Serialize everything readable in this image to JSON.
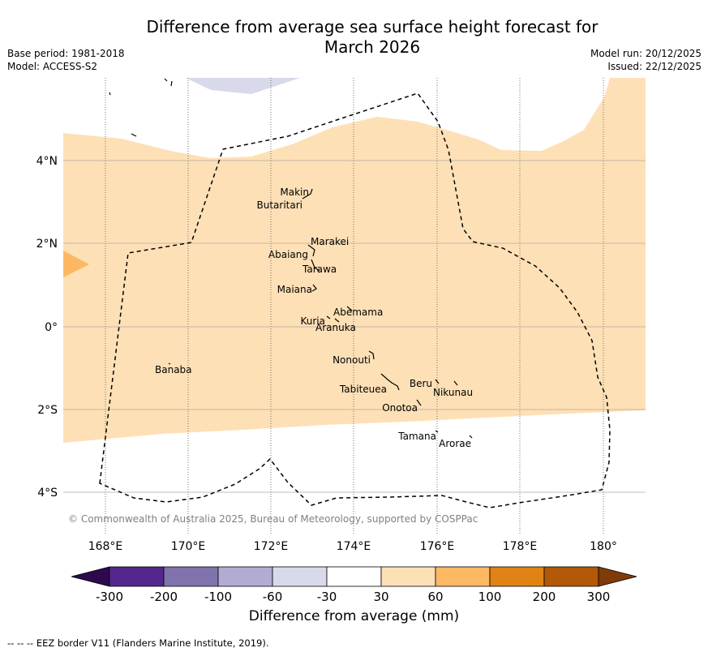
{
  "title": {
    "line1": "Difference from average sea surface height forecast for",
    "line2": "March 2026"
  },
  "meta": {
    "base_period": "Base period: 1981-2018",
    "model": "Model: ACCESS-S2",
    "model_run": "Model run: 20/12/2025",
    "issued": "Issued: 22/12/2025"
  },
  "map": {
    "lon_range": [
      167,
      181
    ],
    "lat_range": [
      -5,
      6
    ],
    "lon_ticks": [
      "168°E",
      "170°E",
      "172°E",
      "174°E",
      "176°E",
      "178°E",
      "180°"
    ],
    "lat_ticks": [
      "4°N",
      "2°N",
      "0°",
      "2°S",
      "4°S"
    ],
    "copyright": "© Commonwealth of Australia 2025, Bureau of Meteorology, supported by COSPPac",
    "islands": [
      {
        "name": "Makin"
      },
      {
        "name": "Butaritari"
      },
      {
        "name": "Marakei"
      },
      {
        "name": "Abaiang"
      },
      {
        "name": "Tarawa"
      },
      {
        "name": "Maiana"
      },
      {
        "name": "Abemama"
      },
      {
        "name": "Kuria"
      },
      {
        "name": "Aranuka"
      },
      {
        "name": "Nonouti"
      },
      {
        "name": "Banaba"
      },
      {
        "name": "Beru"
      },
      {
        "name": "Nikunau"
      },
      {
        "name": "Tabiteuea"
      },
      {
        "name": "Onotoa"
      },
      {
        "name": "Tamana"
      },
      {
        "name": "Arorae"
      }
    ]
  },
  "colorbar": {
    "tick_labels": [
      "-300",
      "-200",
      "-100",
      "-60",
      "-30",
      "30",
      "60",
      "100",
      "200",
      "300"
    ],
    "colors": {
      "below": "#2d0a4e",
      "c1": "#54278f",
      "c2": "#8073ac",
      "c3": "#b2abd2",
      "c4": "#d8daeb",
      "c5": "#ffffff",
      "c6": "#fee0b6",
      "c7": "#fdb863",
      "c8": "#e08214",
      "c9": "#b35806",
      "above": "#7f3b08"
    },
    "label": "Difference from average (mm)"
  },
  "eez_note": "--  --  -- EEZ border V11 (Flanders Marine Institute, 2019)."
}
